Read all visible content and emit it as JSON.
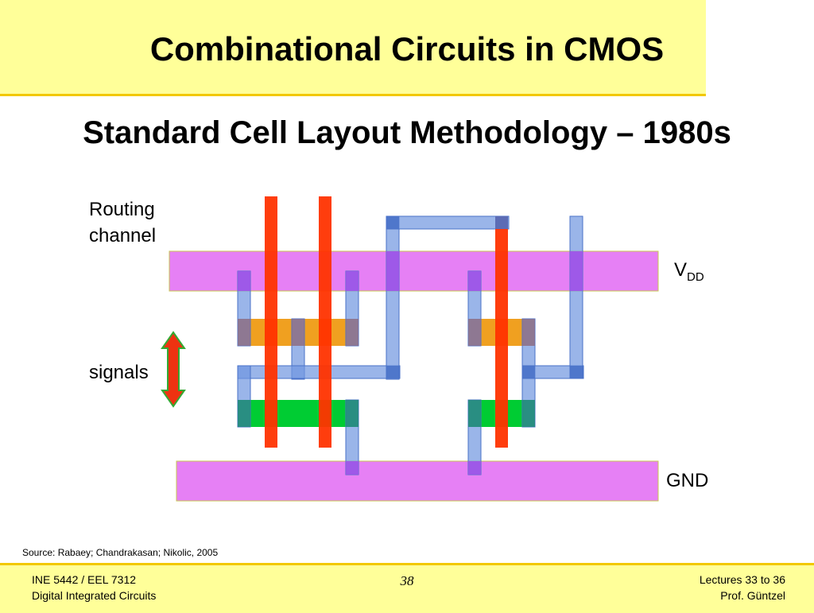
{
  "slide": {
    "title": "Combinational Circuits in CMOS",
    "subtitle": "Standard Cell Layout Methodology – 1980s"
  },
  "diagram": {
    "routing_label_line1": "Routing",
    "routing_label_line2": "channel",
    "signals_label": "signals",
    "vdd_label": "V",
    "vdd_subscript": "DD",
    "gnd_label": "GND",
    "colors": {
      "power_rail": "#e680f5",
      "poly": "#ff3300",
      "metal": "#95b3e8",
      "pdiff": "#f0a020",
      "ndiff": "#00cc33",
      "via": "#a050e8",
      "arrow": "#ee3311",
      "arrow_outline": "#33aa33"
    }
  },
  "source": "Source: Rabaey; Chandrakasan; Nikolic, 2005",
  "footer": {
    "course_line1": "INE 5442 / EEL 7312",
    "course_line2": "Digital Integrated Circuits",
    "page_number": "38",
    "lectures": "Lectures 33 to 36",
    "author": "Prof. Güntzel"
  }
}
